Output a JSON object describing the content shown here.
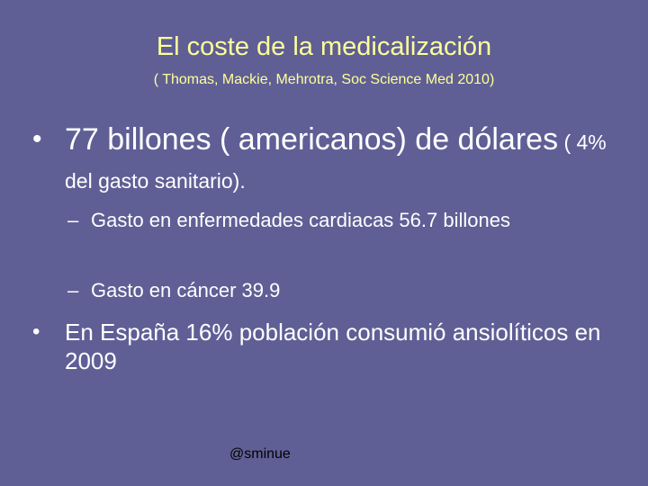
{
  "slide": {
    "title": "El coste de la medicalización",
    "subtitle": "( Thomas, Mackie, Mehrotra, Soc Science Med 2010)",
    "bullets": [
      {
        "marker": "•",
        "text_large": "77 billones ( americanos) de dólares",
        "text_small": " ( 4% del gasto sanitario).",
        "sub_items": [
          {
            "marker": "–",
            "text": "Gasto en enfermedades cardiacas 56.7 billones"
          },
          {
            "marker": "–",
            "text": "Gasto en cáncer 39.9"
          }
        ]
      },
      {
        "marker": "•",
        "text": "En España 16% población consumió ansiolíticos en 2009"
      }
    ],
    "footer": "@sminue"
  },
  "colors": {
    "background": "#5f5f96",
    "title": "#ffff99",
    "body_text": "#ffffff",
    "footer": "#000000"
  }
}
